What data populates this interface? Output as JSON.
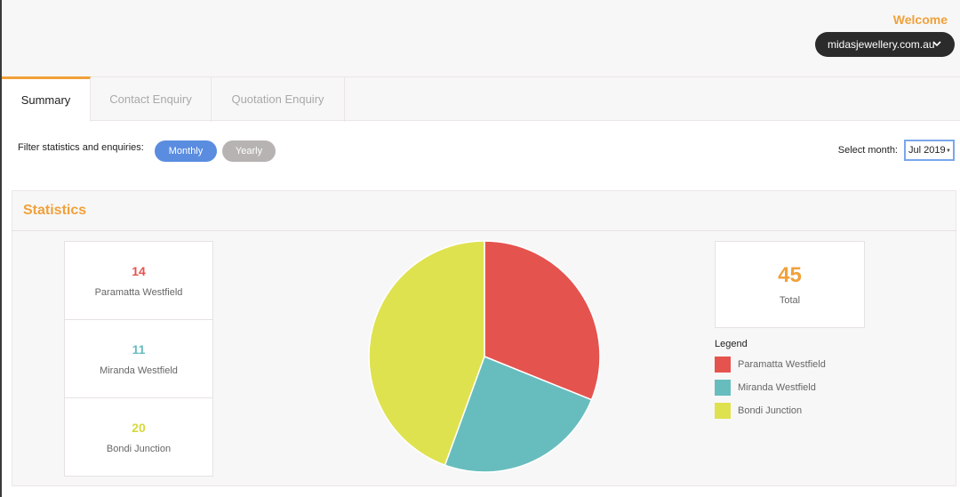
{
  "header": {
    "welcome": "Welcome",
    "site": "midasjewellery.com.au",
    "site_icon": "chevron-down-icon"
  },
  "tabs": [
    {
      "label": "Summary",
      "active": true
    },
    {
      "label": "Contact Enquiry",
      "active": false
    },
    {
      "label": "Quotation Enquiry",
      "active": false
    }
  ],
  "filter": {
    "label": "Filter statistics and enquiries:",
    "monthly": "Monthly",
    "yearly": "Yearly",
    "selected": "Monthly",
    "month_label": "Select month:",
    "month_value": "Jul 2019"
  },
  "statistics": {
    "title": "Statistics",
    "locations": [
      {
        "count": "14",
        "name": "Paramatta Westfield",
        "color": "#e5534f"
      },
      {
        "count": "11",
        "name": "Miranda Westfield",
        "color": "#67bdbd"
      },
      {
        "count": "20",
        "name": "Bondi Junction",
        "color": "#dfe24f"
      }
    ],
    "total": {
      "value": "45",
      "label": "Total"
    },
    "legend_title": "Legend"
  },
  "colors": {
    "accent": "#f0a13a",
    "monthly_pill": "#5a8de0",
    "yearly_pill": "#b7b3b3"
  },
  "chart_data": {
    "type": "pie",
    "categories": [
      "Paramatta Westfield",
      "Miranda Westfield",
      "Bondi Junction"
    ],
    "values": [
      14,
      11,
      20
    ],
    "colors": [
      "#e5534f",
      "#67bdbd",
      "#dfe24f"
    ],
    "title": "",
    "legend": "right"
  }
}
